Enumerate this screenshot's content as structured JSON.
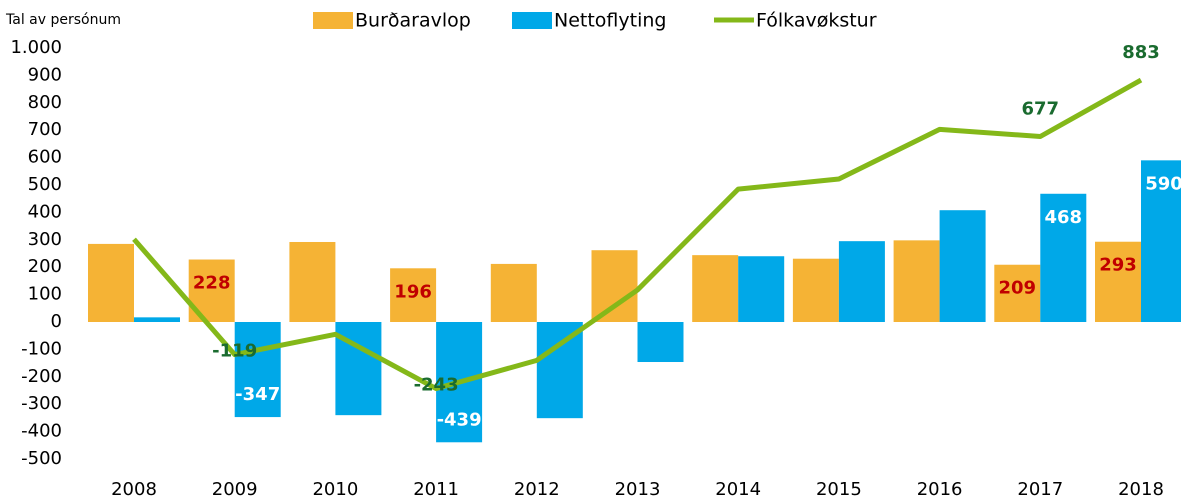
{
  "chart_data": {
    "type": "bar_line",
    "y_label": "Tal av persónum",
    "categories": [
      "2008",
      "2009",
      "2010",
      "2011",
      "2012",
      "2013",
      "2014",
      "2015",
      "2016",
      "2017",
      "2018"
    ],
    "series": [
      {
        "name": "Burðaravlop",
        "type": "bar",
        "color": "#f5b335",
        "label_color": "#c00000",
        "values": [
          285,
          228,
          292,
          196,
          212,
          262,
          244,
          231,
          298,
          209,
          293
        ],
        "value_labels": [
          null,
          "228",
          null,
          "196",
          null,
          null,
          null,
          null,
          null,
          "209",
          "293"
        ]
      },
      {
        "name": "Nettoflyting",
        "type": "bar",
        "color": "#00a8e8",
        "label_color": "#ffffff",
        "values": [
          17,
          -347,
          -340,
          -439,
          -351,
          -146,
          240,
          295,
          408,
          468,
          590
        ],
        "value_labels": [
          null,
          "-347",
          null,
          "-439",
          null,
          null,
          null,
          null,
          null,
          "468",
          "590"
        ]
      },
      {
        "name": "Fólkavøkstur",
        "type": "line",
        "color": "#84b819",
        "label_color": "#1a6b2f",
        "values": [
          302,
          -119,
          -45,
          -243,
          -140,
          117,
          485,
          522,
          703,
          677,
          883
        ],
        "value_labels": [
          null,
          "-119",
          null,
          "-243",
          null,
          null,
          null,
          null,
          null,
          "677",
          "883"
        ]
      }
    ],
    "ylim": [
      -500,
      1000
    ],
    "yticks": [
      -500,
      -400,
      -300,
      -200,
      -100,
      0,
      100,
      200,
      300,
      400,
      500,
      600,
      700,
      800,
      900,
      {
        "value": 1000,
        "label": "1.000"
      }
    ],
    "legend": "top"
  }
}
